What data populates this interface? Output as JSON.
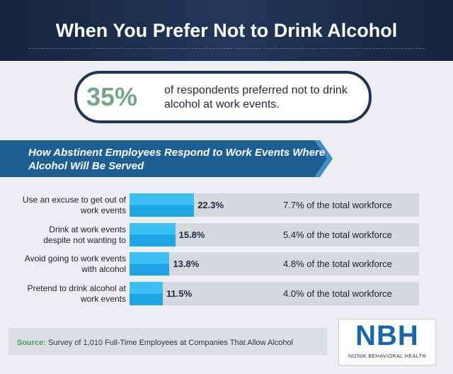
{
  "header": {
    "title": "When You Prefer Not to Drink Alcohol"
  },
  "callout": {
    "stat": "35%",
    "text": "of respondents preferred not to drink alcohol at work events."
  },
  "chart_data": {
    "type": "bar",
    "title": "How Abstinent Employees Respond to Work Events Where Alcohol Will Be Served",
    "categories": [
      "Use an excuse to get out of work events",
      "Drink at work events despite not wanting to",
      "Avoid going to work events with alcohol",
      "Pretend to drink alcohol at work events"
    ],
    "values": [
      22.3,
      15.8,
      13.8,
      11.5
    ],
    "value_labels": [
      "22.3%",
      "15.8%",
      "13.8%",
      "11.5%"
    ],
    "notes": [
      "7.7% of the total workforce",
      "5.4% of the total workforce",
      "4.8% of the total workforce",
      "4.0% of the total workforce"
    ],
    "xlim": [
      0,
      100
    ],
    "color": "#1ea5e3"
  },
  "source": {
    "label": "Source:",
    "text": "Survey of 1,010 Full-Time Employees at Companies That Allow Alcohol"
  },
  "logo": {
    "mark": "NBH",
    "name": "NIZNIK BEHAVIORAL HEALTH"
  }
}
